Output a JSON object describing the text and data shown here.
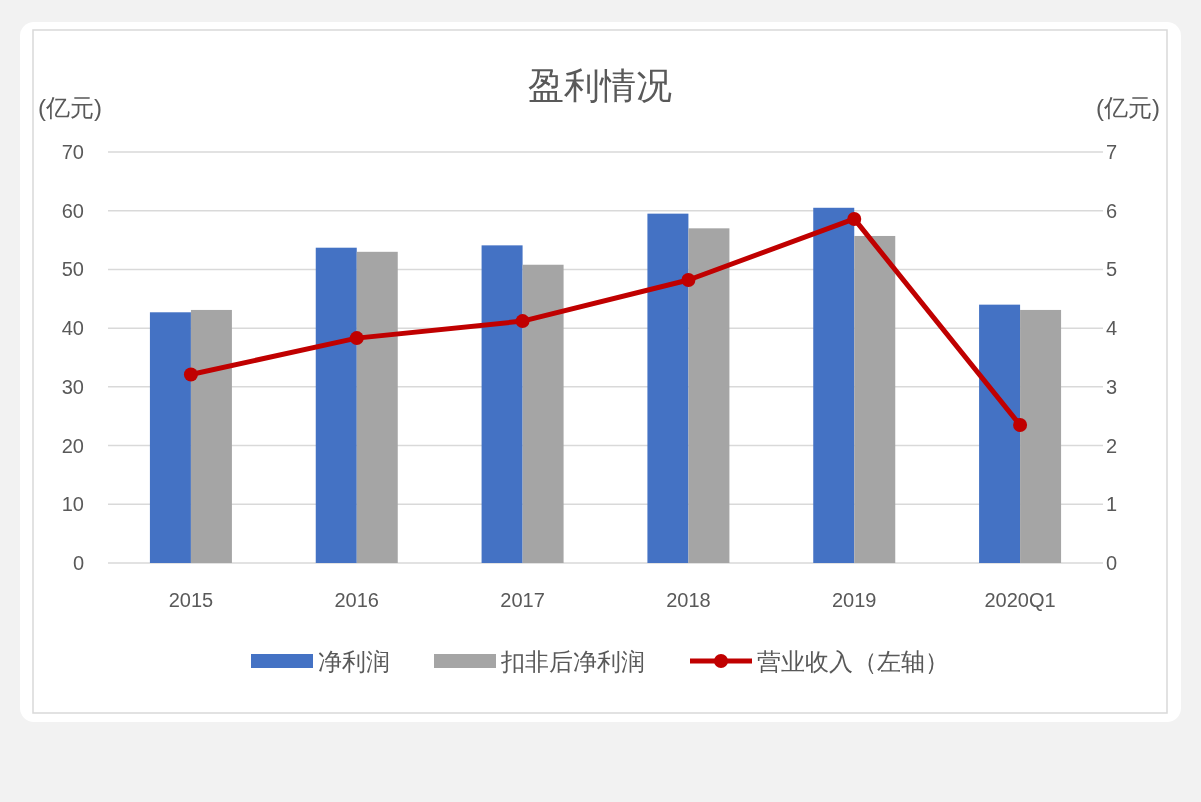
{
  "chart_data": {
    "type": "bar",
    "title": "盈利情况",
    "ylabel": "(亿元)",
    "y2label": "(亿元)",
    "categories": [
      "2015",
      "2016",
      "2017",
      "2018",
      "2019",
      "2020Q1"
    ],
    "series": [
      {
        "name": "净利润",
        "color": "#4472c4",
        "values": [
          42.7,
          53.7,
          54.1,
          59.5,
          60.5,
          44.0
        ]
      },
      {
        "name": "扣非后净利润",
        "color": "#a5a5a5",
        "values": [
          43.1,
          53.0,
          50.8,
          57.0,
          55.7,
          43.1
        ]
      },
      {
        "name": "营业收入（左轴）",
        "type": "line",
        "color": "#c00000",
        "marker": "circle",
        "values": [
          32.1,
          38.3,
          41.2,
          48.2,
          58.6,
          23.5
        ]
      }
    ],
    "ylim": [
      0,
      70
    ],
    "yticks": [
      0,
      10,
      20,
      30,
      40,
      50,
      60,
      70
    ],
    "y2lim": [
      0,
      7
    ],
    "y2ticks": [
      0,
      1,
      2,
      3,
      4,
      5,
      6,
      7
    ],
    "grid": "y",
    "legend": "bottom"
  }
}
